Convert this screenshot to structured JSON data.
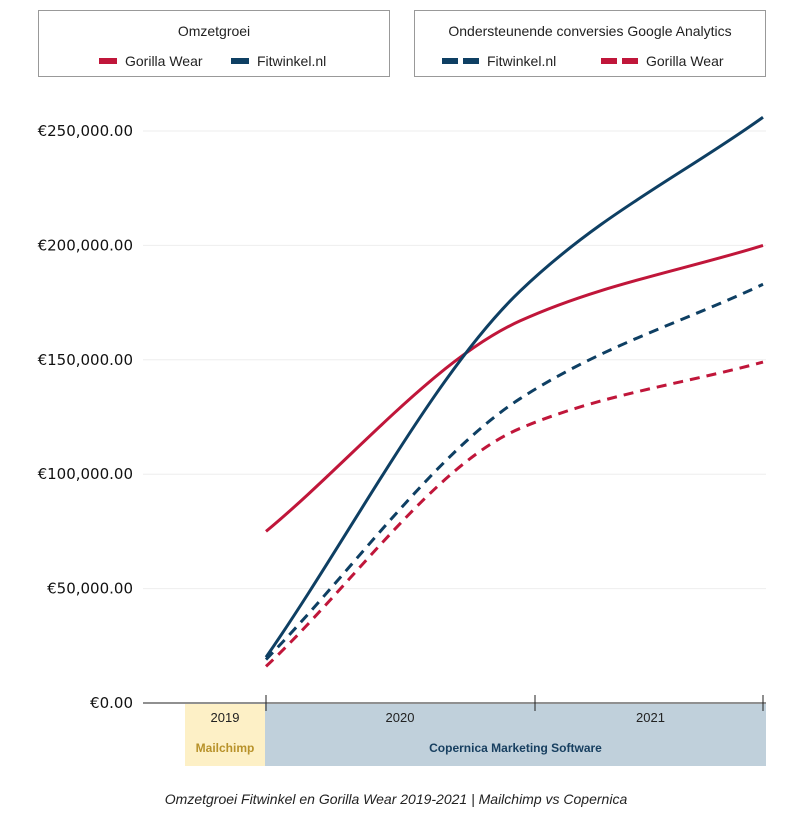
{
  "colors": {
    "gorilla": "#c0163a",
    "fitwinkel": "#0e3f63",
    "mailchimp_bg": "#fdf0c6",
    "mailchimp_text": "#b8922a",
    "copernica_bg": "#c0d0db",
    "copernica_text": "#173f60"
  },
  "legends": [
    {
      "title": "Omzetgroei",
      "items": [
        "Gorilla Wear",
        "Fitwinkel.nl"
      ]
    },
    {
      "title": "Ondersteunende conversies Google Analytics",
      "items": [
        "Fitwinkel.nl",
        "Gorilla Wear"
      ]
    }
  ],
  "bands": {
    "y2019": "2019",
    "y2020": "2020",
    "y2021": "2021",
    "mailchimp": "Mailchimp",
    "copernica": "Copernica Marketing Software"
  },
  "caption": "Omzetgroei Fitwinkel en Gorilla Wear 2019-2021 | Mailchimp vs Copernica",
  "chart_data": {
    "type": "line",
    "x": [
      "2019",
      "2020",
      "2021"
    ],
    "ylim": [
      0,
      250000
    ],
    "yticks": [
      "€0.00",
      "€50,000.00",
      "€100,000.00",
      "€150,000.00",
      "€200,000.00",
      "€250,000.00"
    ],
    "grid": true,
    "series": [
      {
        "name": "Gorilla Wear",
        "group": "Omzetgroei",
        "style": "solid",
        "color": "#c0163a",
        "values": [
          75000,
          167000,
          200000
        ]
      },
      {
        "name": "Fitwinkel.nl",
        "group": "Omzetgroei",
        "style": "solid",
        "color": "#0e3f63",
        "values": [
          20000,
          180000,
          256000
        ]
      },
      {
        "name": "Fitwinkel.nl",
        "group": "Ondersteunende conversies Google Analytics",
        "style": "dashed",
        "color": "#0e3f63",
        "values": [
          19000,
          133000,
          183000
        ]
      },
      {
        "name": "Gorilla Wear",
        "group": "Ondersteunende conversies Google Analytics",
        "style": "dashed",
        "color": "#c0163a",
        "values": [
          16000,
          120000,
          149000
        ]
      }
    ]
  }
}
